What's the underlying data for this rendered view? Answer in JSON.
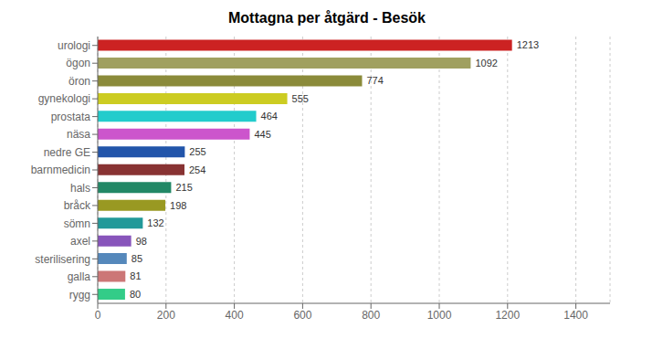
{
  "chart_data": {
    "type": "bar",
    "orientation": "horizontal",
    "title": "Mottagna per åtgärd - Besök",
    "categories": [
      "urologi",
      "ögon",
      "öron",
      "gynekologi",
      "prostata",
      "näsa",
      "nedre GE",
      "barnmedicin",
      "hals",
      "bråck",
      "sömn",
      "axel",
      "sterilisering",
      "galla",
      "rygg"
    ],
    "values": [
      1213,
      1092,
      774,
      555,
      464,
      445,
      255,
      254,
      215,
      198,
      132,
      98,
      85,
      81,
      80
    ],
    "colors": [
      "#cc2222",
      "#a0a060",
      "#8b8b3a",
      "#cccc22",
      "#22cccc",
      "#cc55cc",
      "#2255aa",
      "#883333",
      "#228866",
      "#999922",
      "#229999",
      "#8855bb",
      "#5588bb",
      "#cc7777",
      "#33cc88"
    ],
    "xlim": [
      0,
      1500
    ],
    "xticks": [
      0,
      200,
      400,
      600,
      800,
      1000,
      1200,
      1400
    ],
    "grid": true,
    "data_labels": true
  }
}
